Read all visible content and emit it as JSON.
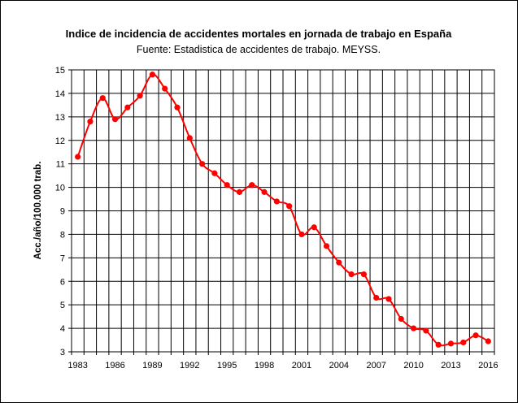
{
  "chart_data": {
    "type": "line",
    "title": "Indice de incidencia de accidentes mortales en jornada de trabajo en España",
    "subtitle": "Fuente: Estadistica de accidentes de trabajo. MEYSS.",
    "xlabel": "",
    "ylabel": "Acc./año/100.000 trab.",
    "xlim": [
      1982.5,
      2016.5
    ],
    "ylim": [
      3,
      15
    ],
    "yticks": [
      3,
      4,
      5,
      6,
      7,
      8,
      9,
      10,
      11,
      12,
      13,
      14,
      15
    ],
    "xticks": [
      1983,
      1986,
      1989,
      1992,
      1995,
      1998,
      2001,
      2004,
      2007,
      2010,
      2013,
      2016
    ],
    "grid": true,
    "legend": "none",
    "series_color": "#ff0000",
    "series": [
      {
        "x": [
          1983,
          1984,
          1985,
          1986,
          1987,
          1988,
          1989,
          1990,
          1991,
          1992,
          1993,
          1994,
          1995,
          1996,
          1997,
          1998,
          1999,
          2000,
          2001,
          2002,
          2003,
          2004,
          2005,
          2006,
          2007,
          2008,
          2009,
          2010,
          2011,
          2012,
          2013,
          2014,
          2015,
          2016
        ],
        "values": [
          11.3,
          12.8,
          13.8,
          12.9,
          13.4,
          13.9,
          14.8,
          14.2,
          13.4,
          12.1,
          11.0,
          10.6,
          10.1,
          9.8,
          10.1,
          9.8,
          9.4,
          9.2,
          8.0,
          8.3,
          7.5,
          6.8,
          6.3,
          6.3,
          5.3,
          5.25,
          4.4,
          4.0,
          3.9,
          3.3,
          3.35,
          3.4,
          3.7,
          3.45
        ]
      }
    ]
  }
}
